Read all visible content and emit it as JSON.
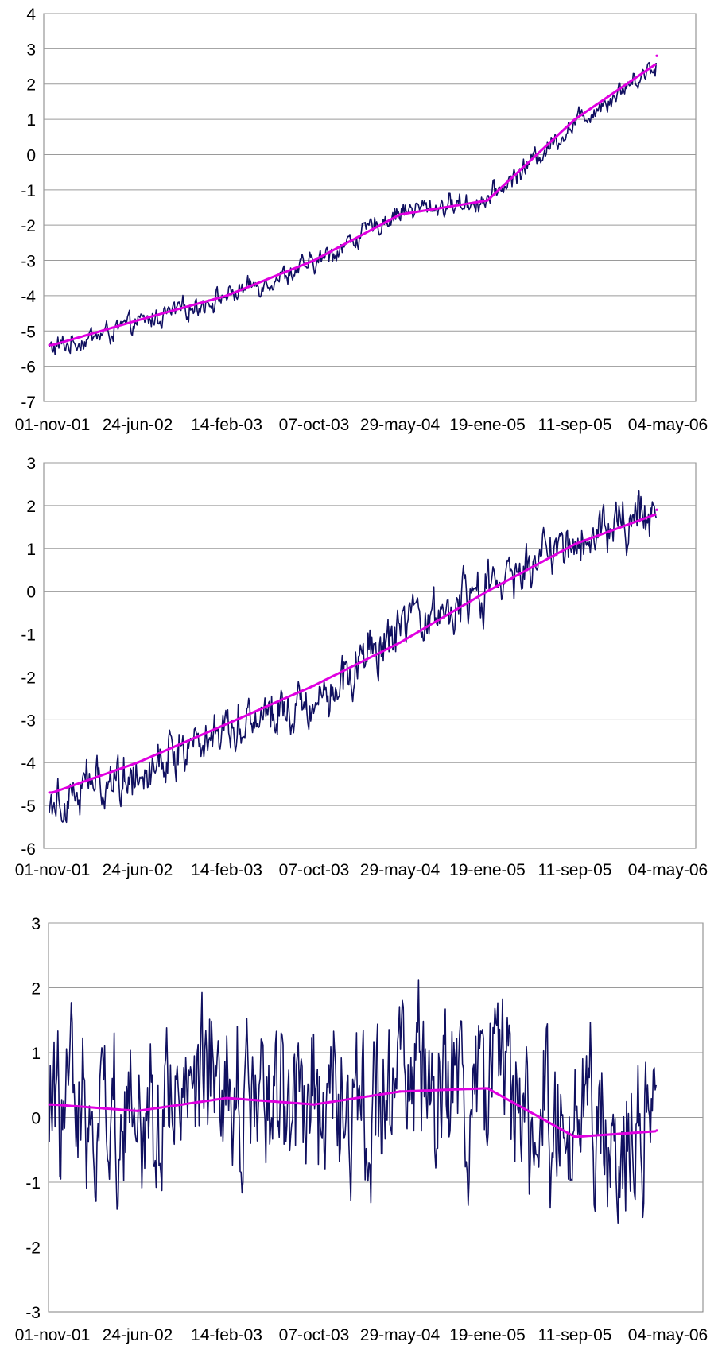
{
  "chart_data": [
    {
      "type": "line",
      "title": "",
      "xlabel": "",
      "ylabel": "",
      "x_tick_labels": [
        "01-nov-01",
        "24-jun-02",
        "14-feb-03",
        "07-oct-03",
        "29-may-04",
        "19-ene-05",
        "11-sep-05",
        "04-may-06"
      ],
      "y_ticks": [
        4,
        3,
        2,
        1,
        0,
        -1,
        -2,
        -3,
        -4,
        -5,
        -6,
        -7
      ],
      "ylim": [
        -7,
        4
      ],
      "grid": true,
      "legend": "none",
      "series": [
        {
          "color": "#101060",
          "style": "noisy daily series",
          "x": [
            "01-nov-01",
            "24-jun-02",
            "14-feb-03",
            "07-oct-03",
            "29-may-04",
            "19-ene-05",
            "11-sep-05",
            "04-may-06"
          ],
          "values": [
            -5.5,
            -4.8,
            -4.0,
            -3.1,
            -1.6,
            -1.3,
            0.9,
            2.8
          ]
        },
        {
          "color": "#e000e0",
          "style": "smooth trend",
          "x": [
            "01-nov-01",
            "24-jun-02",
            "14-feb-03",
            "07-oct-03",
            "29-may-04",
            "19-ene-05",
            "11-sep-05",
            "04-may-06"
          ],
          "values": [
            -5.4,
            -4.7,
            -4.0,
            -3.0,
            -1.7,
            -1.3,
            1.0,
            2.8
          ]
        }
      ]
    },
    {
      "type": "line",
      "title": "",
      "xlabel": "",
      "ylabel": "",
      "x_tick_labels": [
        "01-nov-01",
        "24-jun-02",
        "14-feb-03",
        "07-oct-03",
        "29-may-04",
        "19-ene-05",
        "11-sep-05",
        "04-may-06"
      ],
      "y_ticks": [
        3,
        2,
        1,
        0,
        -1,
        -2,
        -3,
        -4,
        -5,
        -6
      ],
      "ylim": [
        -6,
        3
      ],
      "grid": true,
      "legend": "none",
      "series": [
        {
          "color": "#101060",
          "style": "noisy daily series",
          "x": [
            "01-nov-01",
            "24-jun-02",
            "14-feb-03",
            "07-oct-03",
            "29-may-04",
            "19-ene-05",
            "11-sep-05",
            "04-may-06"
          ],
          "values": [
            -4.8,
            -4.2,
            -3.1,
            -2.5,
            -1.0,
            0.0,
            1.2,
            2.0
          ]
        },
        {
          "color": "#e000e0",
          "style": "smooth trend",
          "x": [
            "01-nov-01",
            "24-jun-02",
            "14-feb-03",
            "07-oct-03",
            "29-may-04",
            "19-ene-05",
            "11-sep-05",
            "04-may-06"
          ],
          "values": [
            -4.7,
            -4.0,
            -3.1,
            -2.2,
            -1.2,
            0.0,
            1.1,
            1.9
          ]
        }
      ]
    },
    {
      "type": "line",
      "title": "",
      "xlabel": "",
      "ylabel": "",
      "x_tick_labels": [
        "01-nov-01",
        "24-jun-02",
        "14-feb-03",
        "07-oct-03",
        "29-may-04",
        "19-ene-05",
        "11-sep-05",
        "04-may-06"
      ],
      "y_ticks": [
        3,
        2,
        1,
        0,
        -1,
        -2,
        -3
      ],
      "ylim": [
        -3,
        3
      ],
      "grid": true,
      "legend": "none",
      "series": [
        {
          "color": "#101060",
          "style": "noisy daily series",
          "x": [
            "01-nov-01",
            "24-jun-02",
            "14-feb-03",
            "07-oct-03",
            "29-may-04",
            "19-ene-05",
            "11-sep-05",
            "04-may-06"
          ],
          "values": [
            0.2,
            0.1,
            0.3,
            0.2,
            0.4,
            0.4,
            -0.3,
            -0.2
          ]
        },
        {
          "color": "#e000e0",
          "style": "smooth trend",
          "x": [
            "01-nov-01",
            "24-jun-02",
            "14-feb-03",
            "07-oct-03",
            "29-may-04",
            "19-ene-05",
            "11-sep-05",
            "04-may-06"
          ],
          "values": [
            0.2,
            0.1,
            0.3,
            0.2,
            0.4,
            0.45,
            -0.3,
            -0.2
          ]
        }
      ]
    }
  ]
}
